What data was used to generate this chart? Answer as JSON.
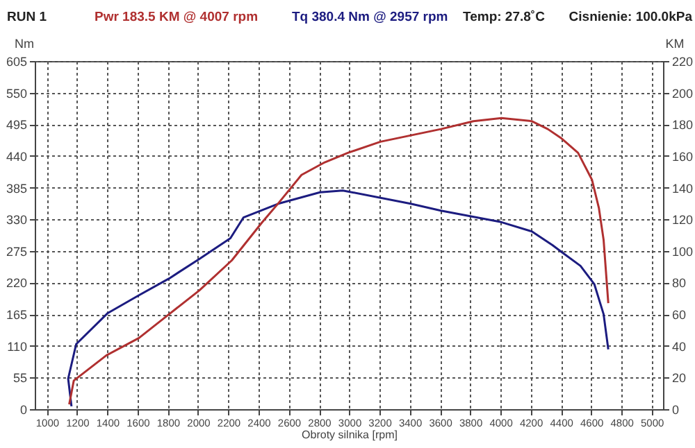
{
  "chart_data": {
    "type": "line",
    "annotations": [
      "RUN 1",
      "Temp: 27.8˚C",
      "Cisnienie: 100.0kPa"
    ],
    "xlabel": "Obroty silnika [rpm]",
    "ylabel": "Nm",
    "y2label": "KM",
    "xlim": [
      920,
      5075
    ],
    "xticks": [
      1000,
      1200,
      1400,
      1600,
      1800,
      2000,
      2200,
      2400,
      2600,
      2800,
      3000,
      3200,
      3400,
      3600,
      3800,
      4000,
      4200,
      4400,
      4600,
      4800,
      5000
    ],
    "ylim": [
      0,
      605
    ],
    "yticks": [
      0,
      55,
      110,
      165,
      220,
      275,
      330,
      385,
      440,
      495,
      550,
      605
    ],
    "y2lim": [
      0,
      220
    ],
    "y2ticks": [
      0,
      20,
      40,
      60,
      80,
      100,
      120,
      140,
      160,
      180,
      200,
      220
    ],
    "grid": true,
    "legend": "top",
    "series": [
      {
        "name": "Pwr  183.5 KM @ 4007 rpm",
        "color": "#b03030",
        "axis": "y2",
        "x": [
          1148,
          1178,
          1394,
          1609,
          1808,
          2008,
          2223,
          2423,
          2530,
          2684,
          2838,
          2991,
          3206,
          3606,
          3821,
          4007,
          4206,
          4313,
          4405,
          4513,
          4605,
          4651,
          4682,
          4713
        ],
        "values": [
          3,
          18,
          34,
          45,
          60,
          75,
          94,
          118,
          130,
          148,
          156,
          162,
          169,
          177,
          182,
          184,
          182,
          177,
          171,
          162,
          145,
          127,
          107,
          67
        ]
      },
      {
        "name": "Tq 380.4 Nm @ 2957 rpm",
        "color": "#1c1c80",
        "x": [
          1163,
          1141,
          1194,
          1403,
          1609,
          1808,
          2008,
          2214,
          2300,
          2530,
          2807,
          2957,
          3406,
          3606,
          4006,
          4206,
          4344,
          4405,
          4529,
          4621,
          4682,
          4713
        ],
        "values": [
          5,
          53,
          113,
          167,
          198,
          227,
          261,
          297,
          333,
          357,
          377,
          380,
          357,
          345,
          325,
          309,
          285,
          273,
          249,
          217,
          165,
          104
        ]
      }
    ]
  }
}
